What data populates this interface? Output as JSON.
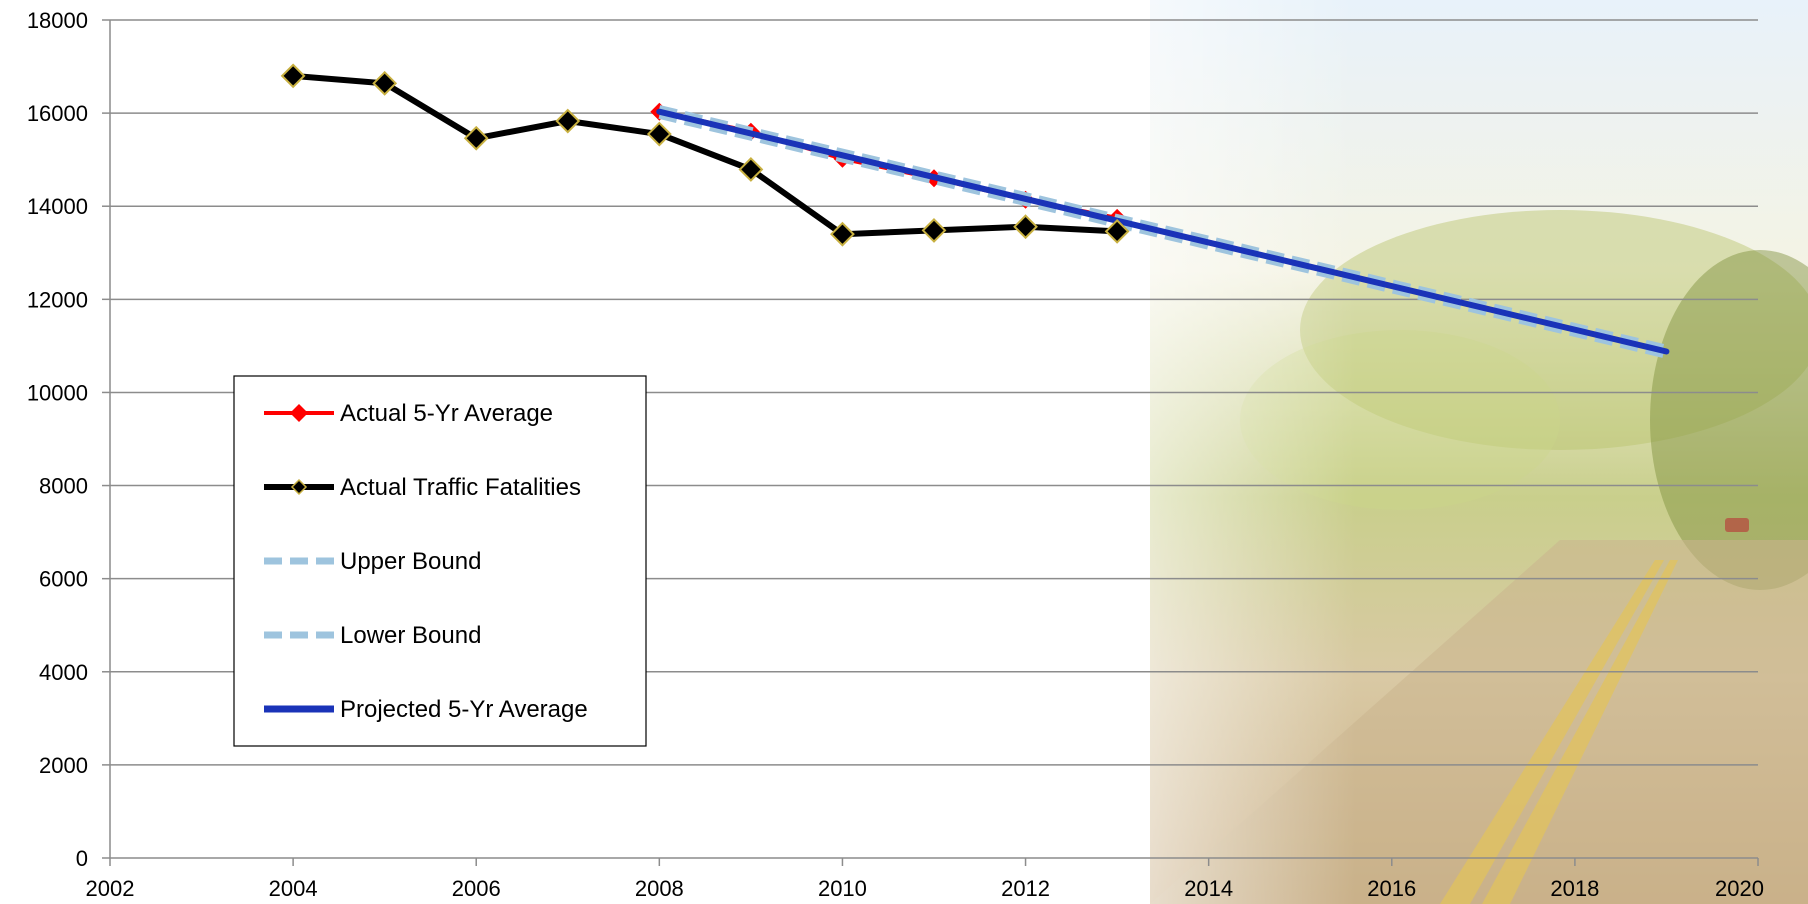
{
  "chart_data": {
    "type": "line",
    "title": "",
    "xlabel": "",
    "ylabel": "",
    "xlim": [
      2002,
      2020
    ],
    "ylim": [
      0,
      18000
    ],
    "x_ticks": [
      "2002",
      "2004",
      "2006",
      "2008",
      "2010",
      "2012",
      "2014",
      "2016",
      "2018",
      "2020"
    ],
    "y_ticks": [
      "0",
      "2000",
      "4000",
      "6000",
      "8000",
      "10000",
      "12000",
      "14000",
      "16000",
      "18000"
    ],
    "grid": "horizontal",
    "legend_position": "left-middle",
    "series": [
      {
        "name": "Actual 5-Yr Average",
        "color": "#ff0000",
        "marker": "diamond",
        "style": "solid",
        "x": [
          2008,
          2009,
          2010,
          2011,
          2012,
          2013
        ],
        "y": [
          16030,
          15600,
          15020,
          14600,
          14140,
          13750
        ]
      },
      {
        "name": "Actual Traffic Fatalities",
        "color": "#000000",
        "marker": "diamond",
        "marker_edge": "#c8b040",
        "style": "solid",
        "x": [
          2004,
          2005,
          2006,
          2007,
          2008,
          2009,
          2010,
          2011,
          2012,
          2013
        ],
        "y": [
          16800,
          16640,
          15460,
          15830,
          15550,
          14790,
          13400,
          13480,
          13560,
          13460
        ]
      },
      {
        "name": "Upper Bound",
        "color": "#9ec4de",
        "style": "dashed",
        "x": [
          2008,
          2019
        ],
        "y": [
          16100,
          10950
        ]
      },
      {
        "name": "Lower Bound",
        "color": "#9ec4de",
        "style": "dashed",
        "x": [
          2008,
          2019
        ],
        "y": [
          15950,
          10800
        ]
      },
      {
        "name": "Projected 5-Yr Average",
        "color": "#1a33b8",
        "style": "solid",
        "x": [
          2008,
          2019
        ],
        "y": [
          16030,
          10880
        ]
      }
    ]
  }
}
